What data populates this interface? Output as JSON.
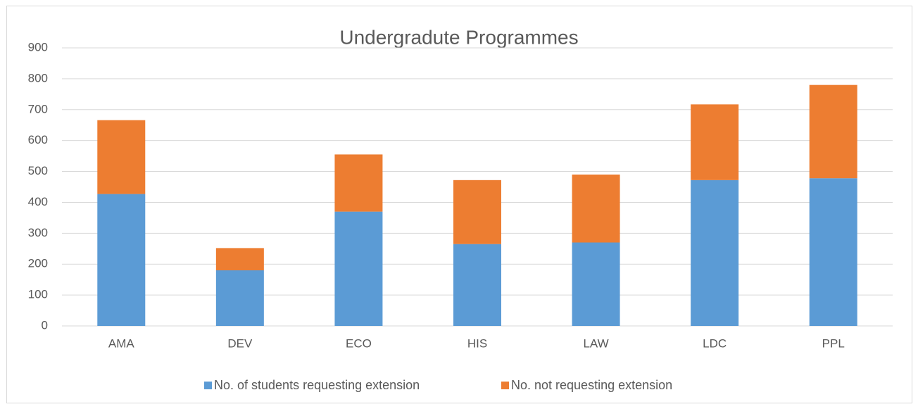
{
  "chart_data": {
    "type": "stacked_bar",
    "title": "Undergradute Programmes",
    "categories": [
      "AMA",
      "DEV",
      "ECO",
      "HIS",
      "LAW",
      "LDC",
      "PPL"
    ],
    "series": [
      {
        "name": "No. of students requesting extension",
        "color": "#5b9bd5",
        "values": [
          427,
          180,
          370,
          265,
          270,
          472,
          478
        ]
      },
      {
        "name": "No. not requesting extension",
        "color": "#ed7d31",
        "values": [
          239,
          72,
          185,
          207,
          220,
          245,
          302
        ]
      }
    ],
    "ylim": [
      0,
      900
    ],
    "yticks": [
      0,
      100,
      200,
      300,
      400,
      500,
      600,
      700,
      800,
      900
    ],
    "grid": true,
    "legend": "bottom"
  }
}
